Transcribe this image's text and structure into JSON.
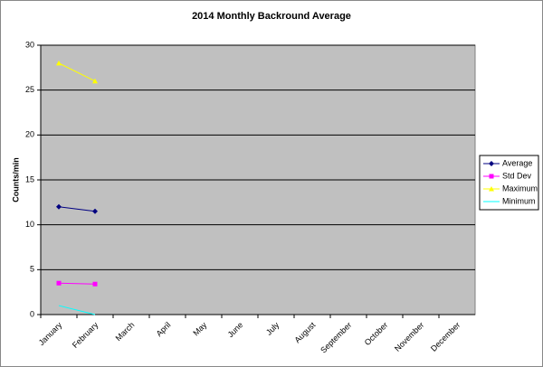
{
  "chart_data": {
    "type": "line",
    "title": "2014 Monthly Backround Average",
    "y_label": "Counts/min",
    "categories": [
      "January",
      "February",
      "March",
      "April",
      "May",
      "June",
      "July",
      "August",
      "September",
      "October",
      "November",
      "December"
    ],
    "series": [
      {
        "name": "Average",
        "color": "#000080",
        "marker": "diamond",
        "values": [
          12,
          11.5,
          null,
          null,
          null,
          null,
          null,
          null,
          null,
          null,
          null,
          null
        ]
      },
      {
        "name": "Std Dev",
        "color": "#ff00ff",
        "marker": "square",
        "values": [
          3.5,
          3.4,
          null,
          null,
          null,
          null,
          null,
          null,
          null,
          null,
          null,
          null
        ]
      },
      {
        "name": "Maximum",
        "color": "#ffff00",
        "marker": "triangle",
        "values": [
          28,
          26,
          null,
          null,
          null,
          null,
          null,
          null,
          null,
          null,
          null,
          null
        ]
      },
      {
        "name": "Minimum",
        "color": "#00ffff",
        "marker": "none",
        "values": [
          1,
          0,
          null,
          null,
          null,
          null,
          null,
          null,
          null,
          null,
          null,
          null
        ]
      }
    ],
    "ylim": [
      0,
      30
    ],
    "yticks": [
      0,
      5,
      10,
      15,
      20,
      25,
      30
    ],
    "grid": true,
    "legend": "right"
  }
}
